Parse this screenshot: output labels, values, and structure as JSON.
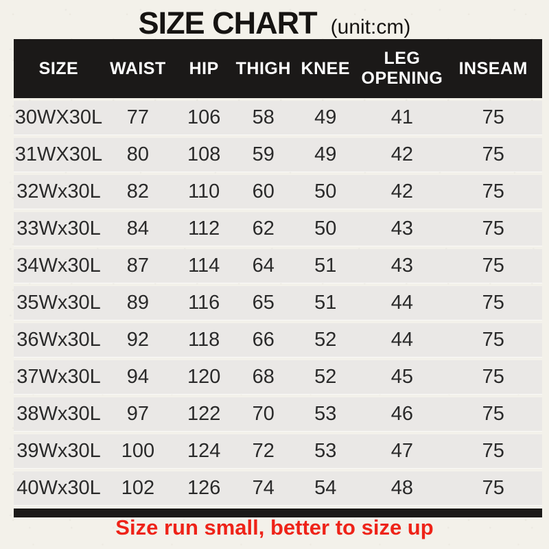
{
  "title": {
    "text": "SIZE CHART",
    "unit": "(unit:cm)"
  },
  "table": {
    "headers": [
      "SIZE",
      "WAIST",
      "HIP",
      "THIGH",
      "KNEE",
      "LEG OPENING",
      "INSEAM"
    ],
    "rows": [
      [
        "30WX30L",
        "77",
        "106",
        "58",
        "49",
        "41",
        "75"
      ],
      [
        "31WX30L",
        "80",
        "108",
        "59",
        "49",
        "42",
        "75"
      ],
      [
        "32Wx30L",
        "82",
        "110",
        "60",
        "50",
        "42",
        "75"
      ],
      [
        "33Wx30L",
        "84",
        "112",
        "62",
        "50",
        "43",
        "75"
      ],
      [
        "34Wx30L",
        "87",
        "114",
        "64",
        "51",
        "43",
        "75"
      ],
      [
        "35Wx30L",
        "89",
        "116",
        "65",
        "51",
        "44",
        "75"
      ],
      [
        "36Wx30L",
        "92",
        "118",
        "66",
        "52",
        "44",
        "75"
      ],
      [
        "37Wx30L",
        "94",
        "120",
        "68",
        "52",
        "45",
        "75"
      ],
      [
        "38Wx30L",
        "97",
        "122",
        "70",
        "53",
        "46",
        "75"
      ],
      [
        "39Wx30L",
        "100",
        "124",
        "72",
        "53",
        "47",
        "75"
      ],
      [
        "40Wx30L",
        "102",
        "126",
        "74",
        "54",
        "48",
        "75"
      ]
    ]
  },
  "footer": {
    "note": "Size run small, better to size up"
  },
  "colors": {
    "background": "#f3f1ea",
    "header_bg": "#1b1918",
    "header_text": "#ffffff",
    "row_bg": "#eae8e6",
    "body_text": "#2a2a2a",
    "accent_red": "#ee2318"
  }
}
